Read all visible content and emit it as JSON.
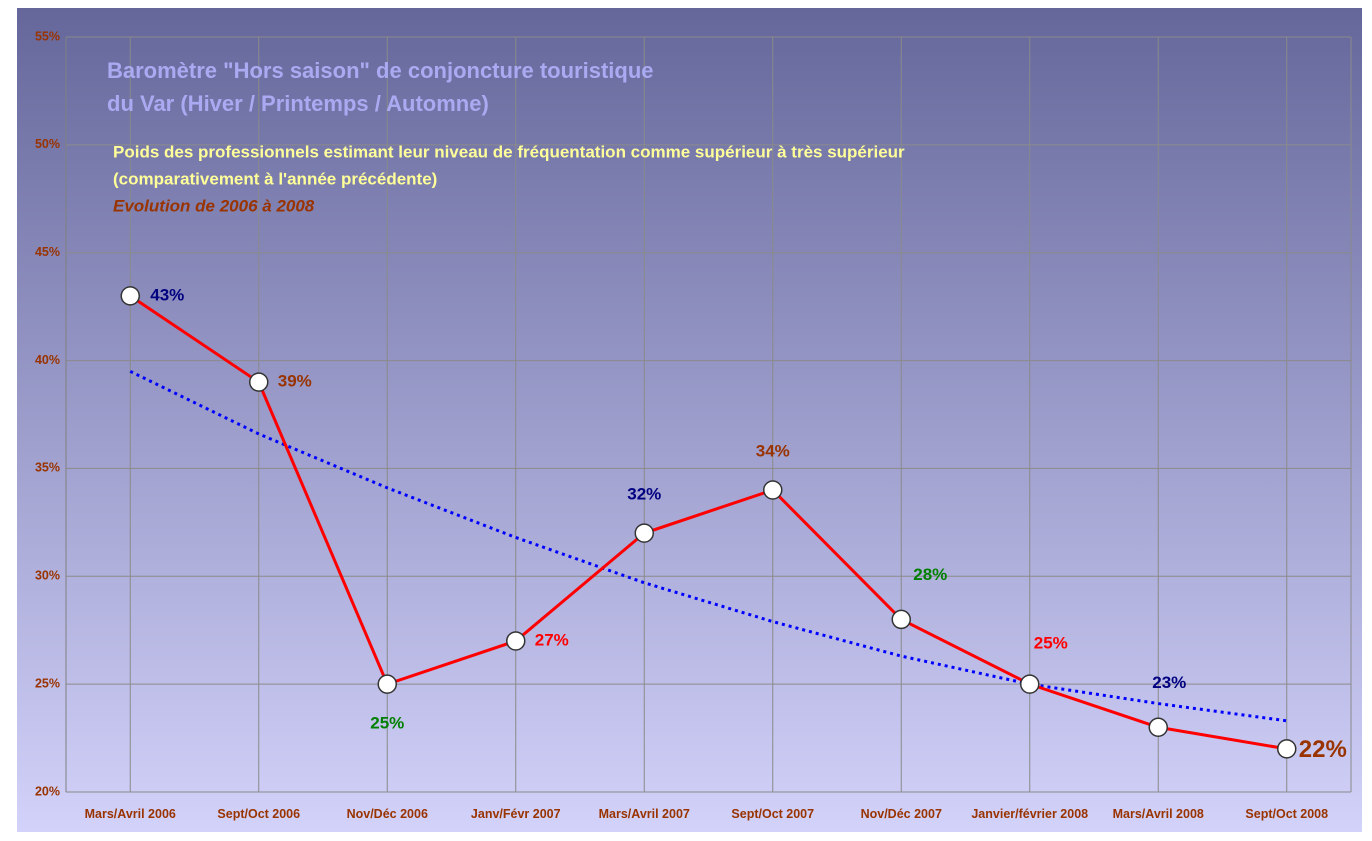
{
  "chart_data": {
    "type": "line",
    "title": "Baromètre \"Hors saison\" de conjoncture touristique",
    "title_line2": "du Var (Hiver / Printemps / Automne)",
    "subtitle": "Poids des professionnels estimant leur niveau de fréquentation comme supérieur à très supérieur",
    "subtitle_line2": "(comparativement à l'année précédente)",
    "annotation": "Evolution de 2006 à 2008",
    "categories": [
      "Mars/Avril 2006",
      "Sept/Oct 2006",
      "Nov/Déc 2006",
      "Janv/Févr 2007",
      "Mars/Avril 2007",
      "Sept/Oct 2007",
      "Nov/Déc 2007",
      "Janvier/février 2008",
      "Mars/Avril 2008",
      "Sept/Oct 2008"
    ],
    "series": [
      {
        "color": "#ff0000",
        "values": [
          43,
          39,
          25,
          27,
          32,
          34,
          28,
          25,
          23,
          22
        ],
        "value_labels": [
          "43%",
          "39%",
          "25%",
          "27%",
          "32%",
          "34%",
          "28%",
          "25%",
          "23%",
          "22%"
        ],
        "label_colors": [
          "#000080",
          "#993300",
          "#008000",
          "#ff0000",
          "#000080",
          "#993300",
          "#008000",
          "#ff0000",
          "#000080",
          "#993300"
        ]
      },
      {
        "color": "#0000ff",
        "style": "dotted",
        "values": [
          39.5,
          36.6,
          34.1,
          31.8,
          29.7,
          27.9,
          26.3,
          25.0,
          24.1,
          23.3
        ]
      }
    ],
    "ylim": [
      20,
      55
    ],
    "yticks": [
      {
        "value": 20,
        "label": "20%"
      },
      {
        "value": 25,
        "label": "25%"
      },
      {
        "value": 30,
        "label": "30%"
      },
      {
        "value": 35,
        "label": "35%"
      },
      {
        "value": 40,
        "label": "40%"
      },
      {
        "value": 45,
        "label": "45%"
      },
      {
        "value": 50,
        "label": "50%"
      },
      {
        "value": 55,
        "label": "55%"
      }
    ],
    "grid": true
  }
}
